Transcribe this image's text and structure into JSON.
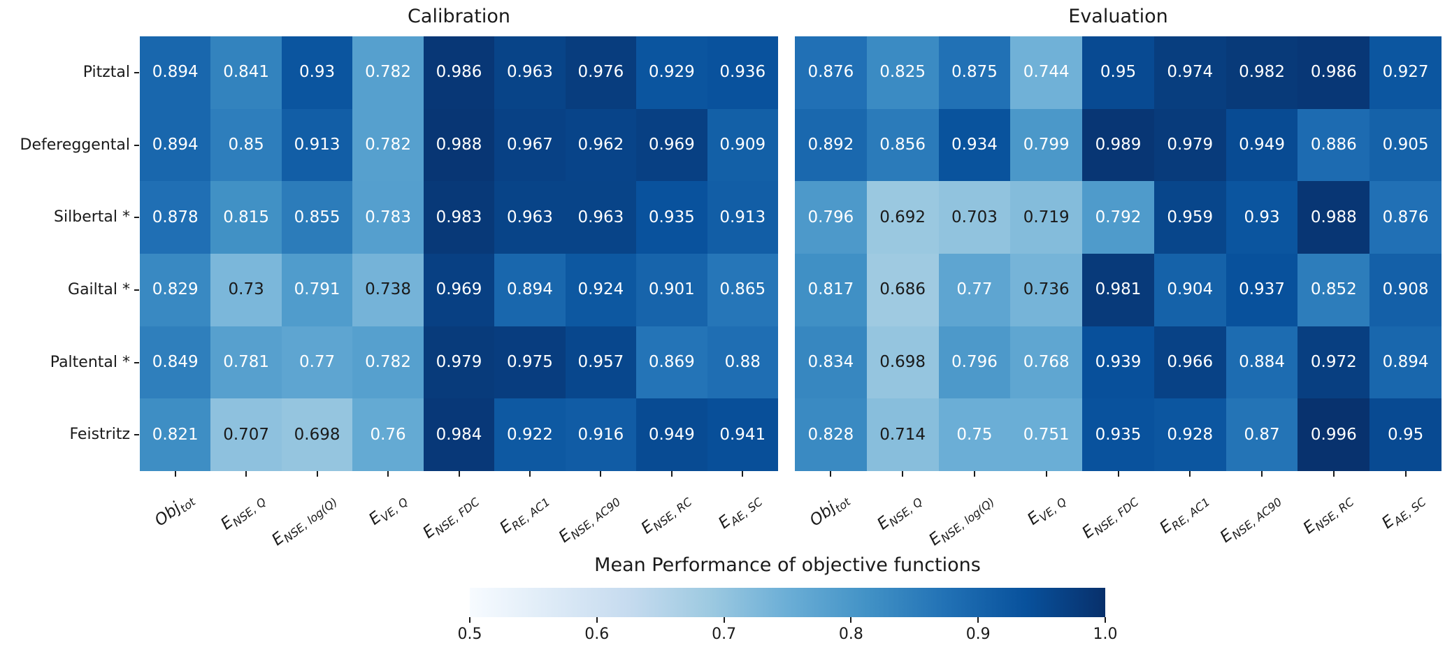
{
  "chart_data": {
    "type": "heatmap",
    "colormap": "Blues",
    "vmin": 0.5,
    "vmax": 1.0,
    "rows": [
      "Pitztal",
      "Defereggental",
      "Silbertal *",
      "Gailtal *",
      "Paltental *",
      "Feistritz"
    ],
    "columns": [
      {
        "main": "Obj",
        "sub": "tot"
      },
      {
        "main": "E",
        "sub": "NSE, Q"
      },
      {
        "main": "E",
        "sub": "NSE, log(Q)"
      },
      {
        "main": "E",
        "sub": "VE, Q"
      },
      {
        "main": "E",
        "sub": "NSE, FDC"
      },
      {
        "main": "E",
        "sub": "RE, AC1"
      },
      {
        "main": "E",
        "sub": "NSE, AC90"
      },
      {
        "main": "E",
        "sub": "NSE, RC"
      },
      {
        "main": "E",
        "sub": "AE, SC"
      }
    ],
    "panels": [
      {
        "title": "Calibration",
        "values": [
          [
            0.894,
            0.841,
            0.93,
            0.782,
            0.986,
            0.963,
            0.976,
            0.929,
            0.936
          ],
          [
            0.894,
            0.85,
            0.913,
            0.782,
            0.988,
            0.967,
            0.962,
            0.969,
            0.909
          ],
          [
            0.878,
            0.815,
            0.855,
            0.783,
            0.983,
            0.963,
            0.963,
            0.935,
            0.913
          ],
          [
            0.829,
            0.73,
            0.791,
            0.738,
            0.969,
            0.894,
            0.924,
            0.901,
            0.865
          ],
          [
            0.849,
            0.781,
            0.77,
            0.782,
            0.979,
            0.975,
            0.957,
            0.869,
            0.88
          ],
          [
            0.821,
            0.707,
            0.698,
            0.76,
            0.984,
            0.922,
            0.916,
            0.949,
            0.941
          ]
        ]
      },
      {
        "title": "Evaluation",
        "values": [
          [
            0.876,
            0.825,
            0.875,
            0.744,
            0.95,
            0.974,
            0.982,
            0.986,
            0.927
          ],
          [
            0.892,
            0.856,
            0.934,
            0.799,
            0.989,
            0.979,
            0.949,
            0.886,
            0.905
          ],
          [
            0.796,
            0.692,
            0.703,
            0.719,
            0.792,
            0.959,
            0.93,
            0.988,
            0.876
          ],
          [
            0.817,
            0.686,
            0.77,
            0.736,
            0.981,
            0.904,
            0.937,
            0.852,
            0.908
          ],
          [
            0.834,
            0.698,
            0.796,
            0.768,
            0.939,
            0.966,
            0.884,
            0.972,
            0.894
          ],
          [
            0.828,
            0.714,
            0.75,
            0.751,
            0.935,
            0.928,
            0.87,
            0.996,
            0.95
          ]
        ]
      }
    ],
    "colorbar": {
      "label": "Mean Performance of objective functions",
      "ticks": [
        0.5,
        0.6,
        0.7,
        0.8,
        0.9,
        1.0
      ],
      "tick_labels": [
        "0.5",
        "0.6",
        "0.7",
        "0.8",
        "0.9",
        "1.0"
      ]
    },
    "annotation_text_colors": {
      "light_cells": "#1a1a1a",
      "dark_cells": "#ffffff"
    }
  }
}
